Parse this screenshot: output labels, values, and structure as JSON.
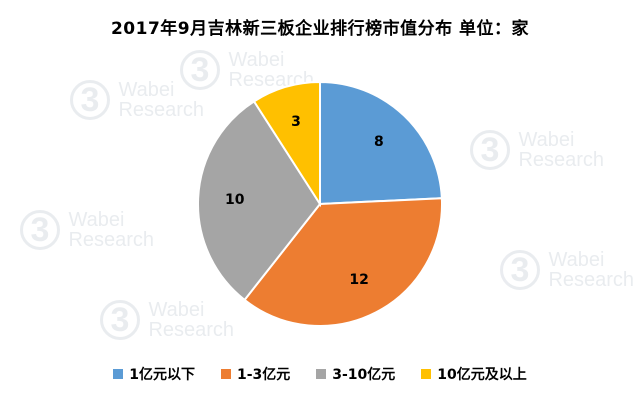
{
  "chart_data": {
    "type": "pie",
    "title": "2017年9月吉林新三板企业排行榜市值分布  单位：家",
    "categories": [
      "1亿元以下",
      "1-3亿元",
      "3-10亿元",
      "10亿元及以上"
    ],
    "values": [
      8,
      12,
      10,
      3
    ],
    "colors": [
      "#5B9BD5",
      "#ED7D31",
      "#A5A5A5",
      "#FFC000"
    ],
    "legend_position": "bottom",
    "start_angle_deg": 0,
    "direction": "clockwise"
  },
  "watermark": {
    "logo": "3",
    "line1": "Wabei",
    "line2": "Research"
  }
}
